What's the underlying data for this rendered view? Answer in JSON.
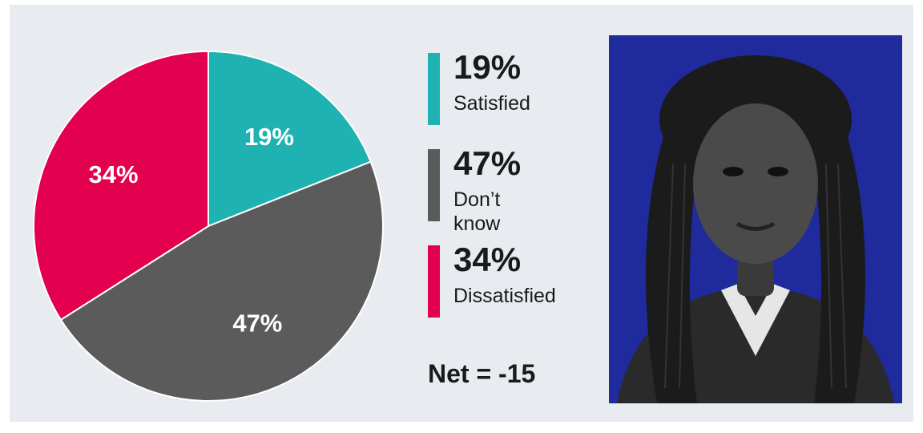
{
  "chart_data": {
    "type": "pie",
    "slices": [
      {
        "label": "19%",
        "value": 19,
        "name": "Satisfied",
        "color": "#1fb2b2"
      },
      {
        "label": "47%",
        "value": 47,
        "name": "Don’t know",
        "color": "#5b5b5b"
      },
      {
        "label": "34%",
        "value": 34,
        "name": "Dissatisfied",
        "color": "#e3004f"
      }
    ]
  },
  "legend": [
    {
      "pct": "19%",
      "label": "Satisfied",
      "color": "#1fb2b2"
    },
    {
      "pct": "47%",
      "label": "Don’t know",
      "color": "#5b5b5b"
    },
    {
      "pct": "34%",
      "label": "Dissatisfied",
      "color": "#e3004f"
    }
  ],
  "net": "Net = -15",
  "colors": {
    "panel_bg": "#e8ebef",
    "photo_bg": "#1f2a9c"
  }
}
